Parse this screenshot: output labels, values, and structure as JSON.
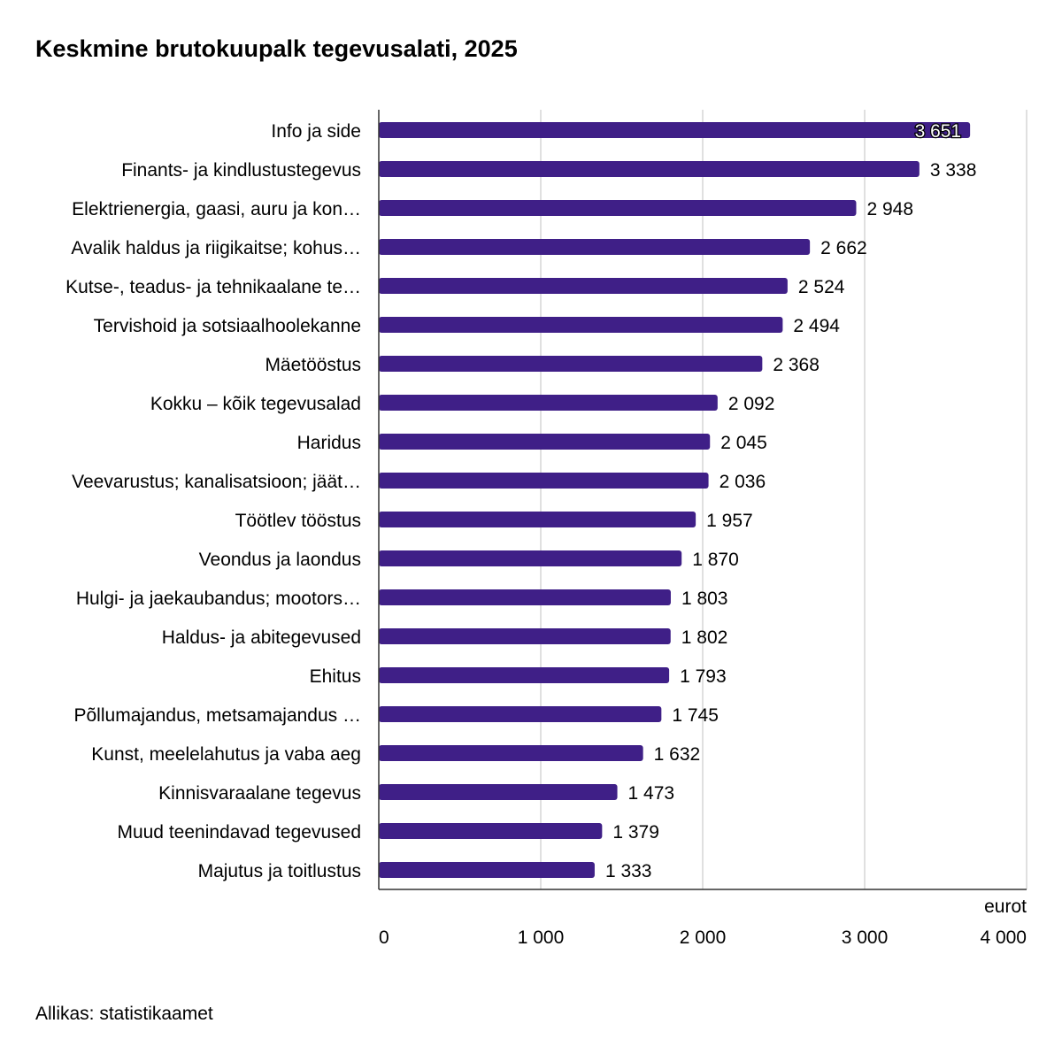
{
  "chart_data": {
    "type": "bar",
    "orientation": "horizontal",
    "title": "Keskmine brutokuupalk tegevusalati, 2025",
    "xlabel": "eurot",
    "ylabel": "",
    "xlim": [
      0,
      4000
    ],
    "ticks": [
      0,
      1000,
      2000,
      3000,
      4000
    ],
    "tick_labels": [
      "0",
      "1 000",
      "2 000",
      "3 000",
      "4 000"
    ],
    "grid": true,
    "bar_color": "#3f1f87",
    "categories": [
      "Info ja side",
      "Finants- ja kindlustustegevus",
      "Elektrienergia, gaasi, auru ja kon…",
      "Avalik haldus ja riigikaitse; kohus…",
      "Kutse-, teadus- ja tehnikaalane te…",
      "Tervishoid ja sotsiaalhoolekanne",
      "Mäetööstus",
      "Kokku – kõik tegevusalad",
      "Haridus",
      "Veevarustus; kanalisatsioon; jäät…",
      "Töötlev tööstus",
      "Veondus ja laondus",
      "Hulgi- ja jaekaubandus; mootors…",
      "Haldus- ja abitegevused",
      "Ehitus",
      "Põllumajandus, metsamajandus …",
      "Kunst, meelelahutus ja vaba aeg",
      "Kinnisvaraalane tegevus",
      "Muud teenindavad tegevused",
      "Majutus ja toitlustus"
    ],
    "values": [
      3651,
      3338,
      2948,
      2662,
      2524,
      2494,
      2368,
      2092,
      2045,
      2036,
      1957,
      1870,
      1803,
      1802,
      1793,
      1745,
      1632,
      1473,
      1379,
      1333
    ],
    "value_labels": [
      "3 651",
      "3 338",
      "2 948",
      "2 662",
      "2 524",
      "2 494",
      "2 368",
      "2 092",
      "2 045",
      "2 036",
      "1 957",
      "1 870",
      "1 803",
      "1 802",
      "1 793",
      "1 745",
      "1 632",
      "1 473",
      "1 379",
      "1 333"
    ]
  },
  "footer": {
    "source": "Allikas: statistikaamet"
  }
}
